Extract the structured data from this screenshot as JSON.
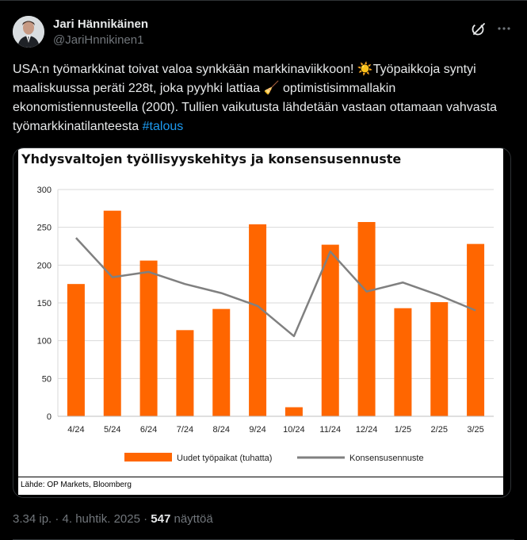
{
  "author": {
    "name": "Jari Hännikäinen",
    "handle": "@JariHnnikinen1"
  },
  "tweet": {
    "text_1": "USA:n työmarkkinat toivat valoa synkkään markkinaviikkoon! ",
    "emoji_sun": "☀️",
    "text_2": "Työpaikkoja syntyi maaliskuussa peräti 228t, joka pyyhki lattiaa ",
    "emoji_broom": "🧹",
    "text_3": " optimistisimmallakin ekonomistiennusteella (200t). Tullien vaikutusta lähdetään vastaan ottamaan vahvasta työmarkkinatilanteesta ",
    "hashtag": "#talous"
  },
  "chart_data": {
    "type": "bar",
    "title": "Yhdysvaltojen työllisyyskehitys ja konsensusennuste",
    "categories": [
      "4/24",
      "5/24",
      "6/24",
      "7/24",
      "8/24",
      "9/24",
      "10/24",
      "11/24",
      "12/24",
      "1/25",
      "2/25",
      "3/25"
    ],
    "series": [
      {
        "name": "Uudet työpaikat (tuhatta)",
        "kind": "bar",
        "color": "#ff6600",
        "values": [
          175,
          272,
          206,
          114,
          142,
          254,
          12,
          227,
          257,
          143,
          151,
          228
        ]
      },
      {
        "name": "Konsensusennuste",
        "kind": "line",
        "color": "#808080",
        "values": [
          236,
          184,
          191,
          175,
          163,
          146,
          106,
          218,
          165,
          177,
          160,
          140
        ]
      }
    ],
    "yticks": [
      "0",
      "50",
      "100",
      "150",
      "200",
      "250",
      "300"
    ],
    "ylim": [
      0,
      300
    ],
    "grid": true,
    "legend": "bottom",
    "source": "Lähde: OP Markets, Bloomberg"
  },
  "meta": {
    "time": "3.34 ip. · 4. huhtik. 2025 · ",
    "views_count": "547",
    "views_label": " näyttöä"
  }
}
